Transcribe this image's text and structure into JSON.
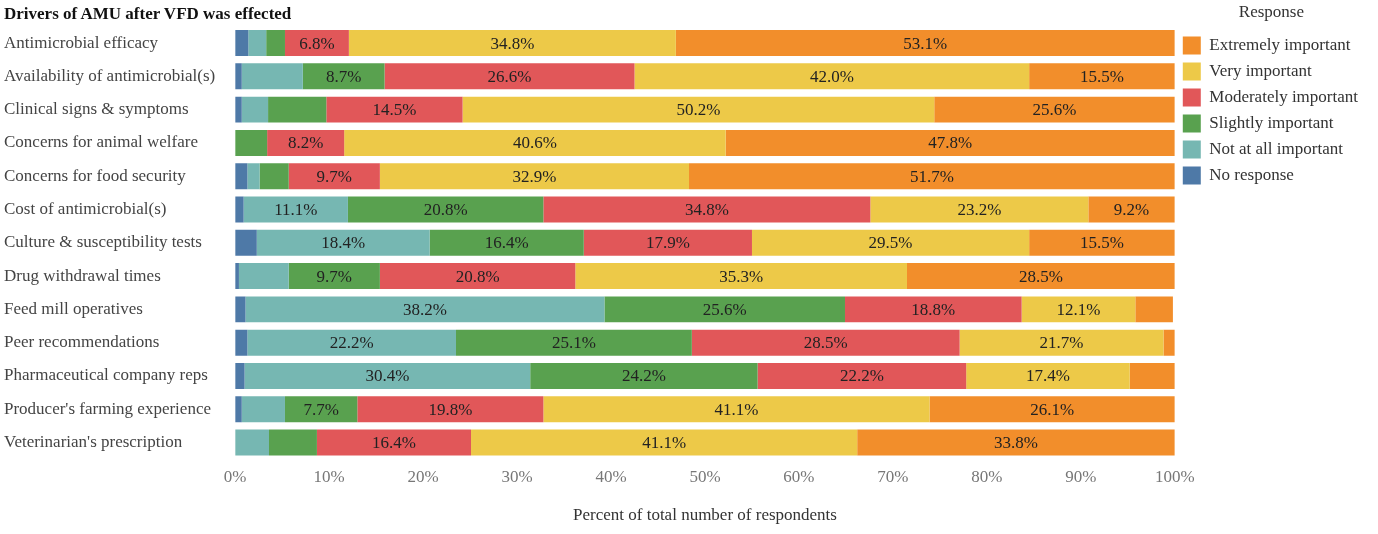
{
  "chart_data": {
    "type": "bar",
    "orientation": "horizontal",
    "stacked": true,
    "title": "Drivers of AMU after VFD was effected",
    "xlabel": "Percent of total number of respondents",
    "legend_title": "Response",
    "legend": "top right",
    "grid": false,
    "categories": [
      "Antimicrobial efficacy",
      "Availability of antimicrobial(s)",
      "Clinical signs & symptoms",
      "Concerns for animal welfare",
      "Concerns for food security",
      "Cost of antimicrobial(s)",
      "Culture & susceptibility tests",
      "Drug withdrawal times",
      "Feed mill operatives",
      "Peer recommendations",
      "Pharmaceutical company reps",
      "Producer's farming experience",
      "Veterinarian's prescription"
    ],
    "xlim": [
      0,
      100
    ],
    "xticks": [
      {
        "value": 0,
        "label": "0%"
      },
      {
        "value": 10,
        "label": "10%"
      },
      {
        "value": 20,
        "label": "20%"
      },
      {
        "value": 30,
        "label": "30%"
      },
      {
        "value": 40,
        "label": "40%"
      },
      {
        "value": 50,
        "label": "50%"
      },
      {
        "value": 60,
        "label": "60%"
      },
      {
        "value": 70,
        "label": "70%"
      },
      {
        "value": 80,
        "label": "80%"
      },
      {
        "value": 90,
        "label": "90%"
      },
      {
        "value": 100,
        "label": "100%"
      }
    ],
    "series": [
      {
        "name": "No response",
        "color": "#4e79a7",
        "values": [
          1.4,
          0.7,
          0.7,
          0,
          1.3,
          0.9,
          2.3,
          0.4,
          1.1,
          1.3,
          1.0,
          0.7,
          0
        ],
        "value_labels": [
          null,
          null,
          null,
          null,
          null,
          null,
          null,
          null,
          null,
          null,
          null,
          null,
          null
        ]
      },
      {
        "name": "Not at all important",
        "color": "#76b7b2",
        "values": [
          1.9,
          6.5,
          2.8,
          0,
          1.3,
          11.1,
          18.4,
          5.3,
          38.2,
          22.2,
          30.4,
          4.6,
          3.6
        ],
        "value_labels": [
          null,
          null,
          null,
          null,
          null,
          "11.1%",
          "18.4%",
          null,
          "38.2%",
          "22.2%",
          "30.4%",
          null,
          null
        ]
      },
      {
        "name": "Slightly important",
        "color": "#59a14f",
        "values": [
          2.0,
          8.7,
          6.2,
          3.4,
          3.1,
          20.8,
          16.4,
          9.7,
          25.6,
          25.1,
          24.2,
          7.7,
          5.1
        ],
        "value_labels": [
          null,
          "8.7%",
          null,
          null,
          null,
          "20.8%",
          "16.4%",
          "9.7%",
          "25.6%",
          "25.1%",
          "24.2%",
          "7.7%",
          null
        ]
      },
      {
        "name": "Moderately important",
        "color": "#e15759",
        "values": [
          6.8,
          26.6,
          14.5,
          8.2,
          9.7,
          34.8,
          17.9,
          20.8,
          18.8,
          28.5,
          22.2,
          19.8,
          16.4
        ],
        "value_labels": [
          "6.8%",
          "26.6%",
          "14.5%",
          "8.2%",
          "9.7%",
          "34.8%",
          "17.9%",
          "20.8%",
          "18.8%",
          "28.5%",
          "22.2%",
          "19.8%",
          "16.4%"
        ]
      },
      {
        "name": "Very important",
        "color": "#edc948",
        "values": [
          34.8,
          42.0,
          50.2,
          40.6,
          32.9,
          23.2,
          29.5,
          35.3,
          12.1,
          21.7,
          17.4,
          41.1,
          41.1
        ],
        "value_labels": [
          "34.8%",
          "42.0%",
          "50.2%",
          "40.6%",
          "32.9%",
          "23.2%",
          "29.5%",
          "35.3%",
          "12.1%",
          "21.7%",
          "17.4%",
          "41.1%",
          "41.1%"
        ]
      },
      {
        "name": "Extremely important",
        "color": "#f28e2b",
        "values": [
          53.1,
          15.5,
          25.6,
          47.8,
          51.7,
          9.2,
          15.5,
          28.5,
          4.0,
          1.2,
          4.8,
          26.1,
          33.8
        ],
        "value_labels": [
          "53.1%",
          "15.5%",
          "25.6%",
          "47.8%",
          "51.7%",
          "9.2%",
          "15.5%",
          "28.5%",
          null,
          null,
          null,
          "26.1%",
          "33.8%"
        ]
      }
    ]
  }
}
